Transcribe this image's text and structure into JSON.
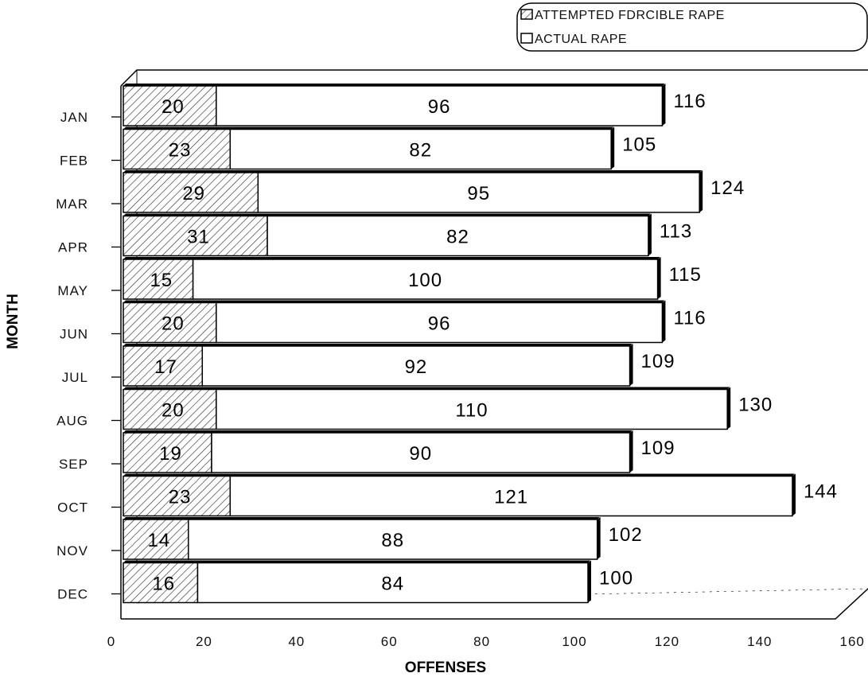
{
  "chart_data": {
    "type": "bar",
    "orientation": "horizontal",
    "stacked": true,
    "three_d": true,
    "title": "",
    "xlabel": "OFFENSES",
    "ylabel": "MONTH",
    "xlim": [
      0,
      160
    ],
    "x_ticks": [
      "0",
      "20",
      "40",
      "60",
      "80",
      "100",
      "120",
      "140",
      "160"
    ],
    "categories": [
      "JAN",
      "FEB",
      "MAR",
      "APR",
      "MAY",
      "JUN",
      "JUL",
      "AUG",
      "SEP",
      "OCT",
      "NOV",
      "DEC"
    ],
    "series": [
      {
        "name": "ATTEMPTED FDRCIBLE RAPE",
        "pattern": "hatched",
        "values": [
          20,
          23,
          29,
          31,
          15,
          20,
          17,
          20,
          19,
          23,
          14,
          16
        ]
      },
      {
        "name": "ACTUAL RAPE",
        "pattern": "plain",
        "values": [
          96,
          82,
          95,
          82,
          100,
          96,
          92,
          110,
          90,
          121,
          88,
          84
        ]
      }
    ],
    "totals": [
      116,
      105,
      124,
      113,
      115,
      116,
      109,
      130,
      109,
      144,
      102,
      100
    ],
    "legend_position": "top-right",
    "grid": false
  },
  "colors": {
    "ink": "#000000",
    "fill": "#ffffff",
    "hatch": "#333333"
  }
}
